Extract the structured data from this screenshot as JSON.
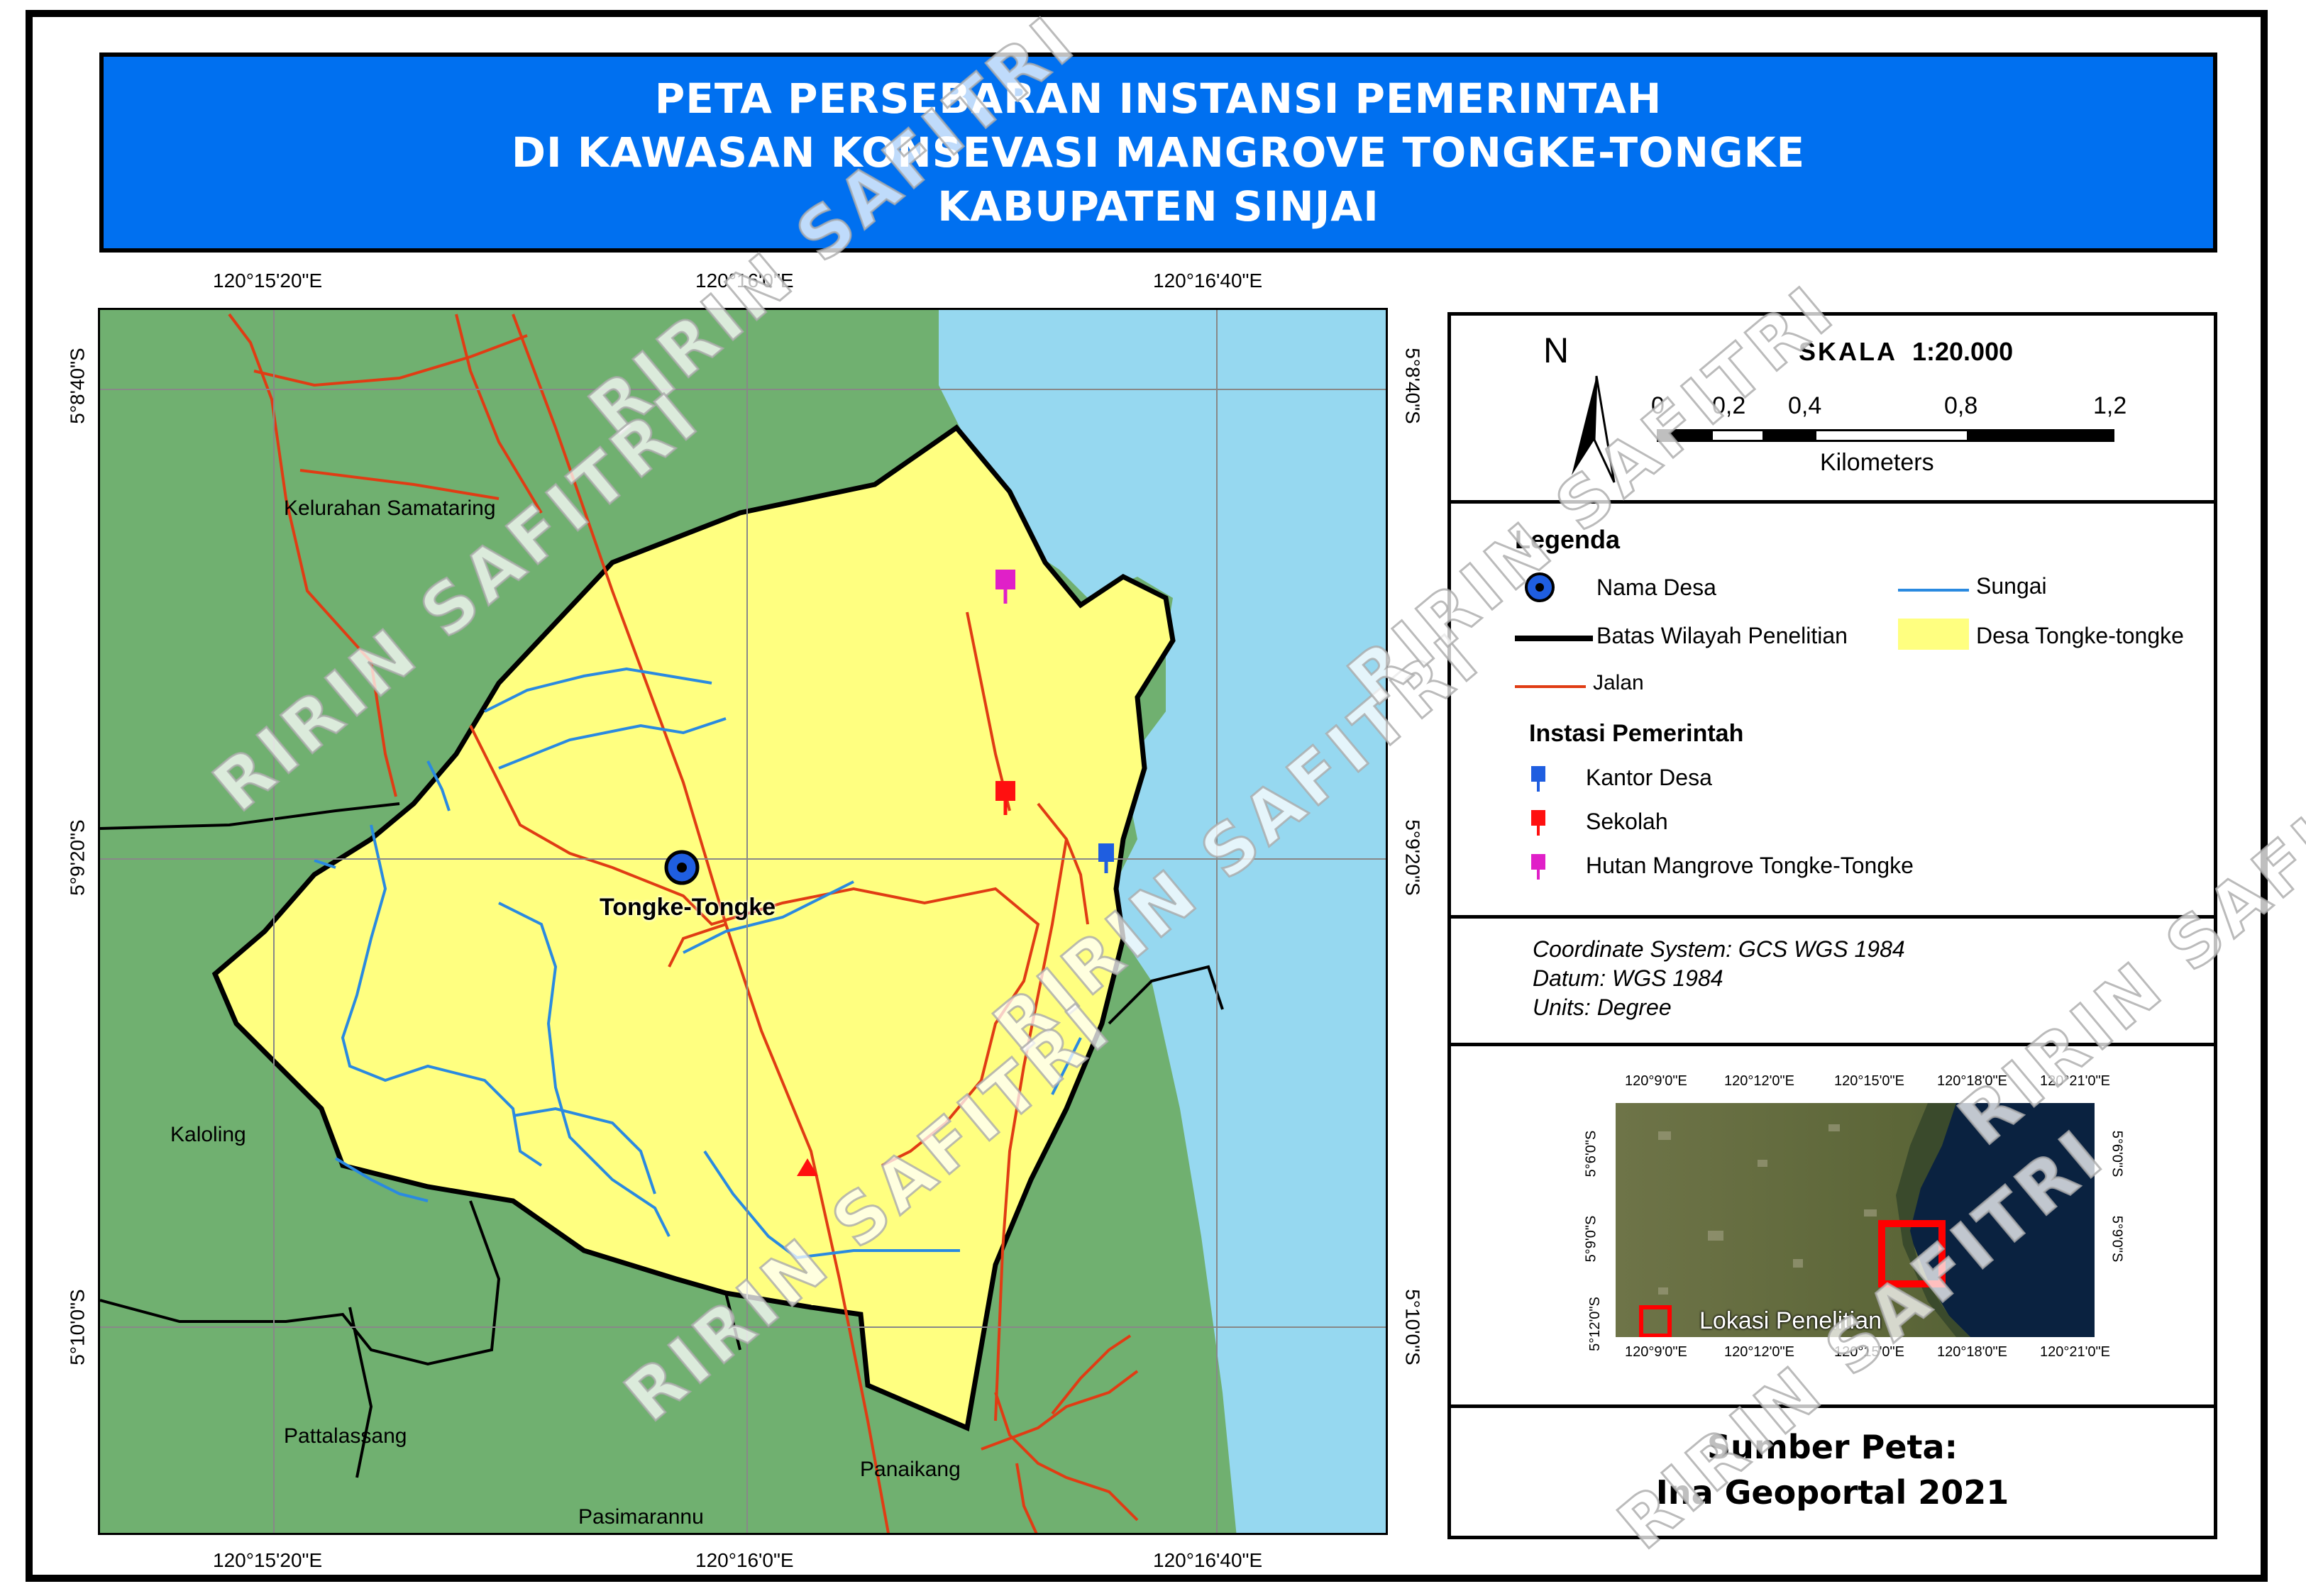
{
  "title": {
    "line1": "PETA PERSEBARAN INSTANSI PEMERINTAH",
    "line2": "DI KAWASAN KONSEVASI MANGROVE TONGKE-TONGKE",
    "line3": "KABUPATEN SINJAI"
  },
  "graticule": {
    "lon_labels": [
      "120°15'20\"E",
      "120°16'0\"E",
      "120°16'40\"E"
    ],
    "lat_labels": [
      "5°8'40\"S",
      "5°9'20\"S",
      "5°10'0\"S"
    ]
  },
  "map_labels": {
    "kelurahan": "Kelurahan Samataring",
    "kaloling": "Kaloling",
    "pattalassang": "Pattalassang",
    "panaikang": "Panaikang",
    "pasimarannu": "Pasimarannu",
    "village": "Tongke-Tongke"
  },
  "scale": {
    "north": "N",
    "title": "SKALA",
    "ratio": "1:20.000",
    "ticks": [
      "0",
      "0,2",
      "0,4",
      "0,8",
      "1,2"
    ],
    "unit": "Kilometers"
  },
  "legend": {
    "title": "Legenda",
    "nama_desa": "Nama Desa",
    "sungai": "Sungai",
    "batas": "Batas Wilayah Penelitian",
    "desa": "Desa Tongke-tongke",
    "jalan": "Jalan",
    "instansi_title": "Instasi Pemerintah",
    "kantor": "Kantor Desa",
    "sekolah": "Sekolah",
    "hutan": "Hutan Mangrove Tongke-Tongke"
  },
  "coord_system": {
    "line1": "Coordinate System: GCS WGS 1984",
    "line2": "Datum: WGS 1984",
    "line3": "Units: Degree"
  },
  "inset": {
    "lon_labels": [
      "120°9'0\"E",
      "120°12'0\"E",
      "120°15'0\"E",
      "120°18'0\"E",
      "120°21'0\"E"
    ],
    "lat_labels": [
      "5°6'0\"S",
      "5°9'0\"S",
      "5°12'0\"S"
    ],
    "lokasi": "Lokasi Penelitian"
  },
  "source": {
    "line1": "Sumber Peta:",
    "line2": "Ina Geoportal 2021"
  },
  "watermark": "RIRIN SAFITRI",
  "colors": {
    "title_bg": "#0070f0",
    "land": "#70b070",
    "desa": "#ffff80",
    "sea": "#96d8f0",
    "road": "#e03c14",
    "river": "#2a8ae0",
    "boundary": "#000000",
    "kantor": "#1f5ee0",
    "sekolah": "#ff1010",
    "hutan": "#e020c8"
  }
}
